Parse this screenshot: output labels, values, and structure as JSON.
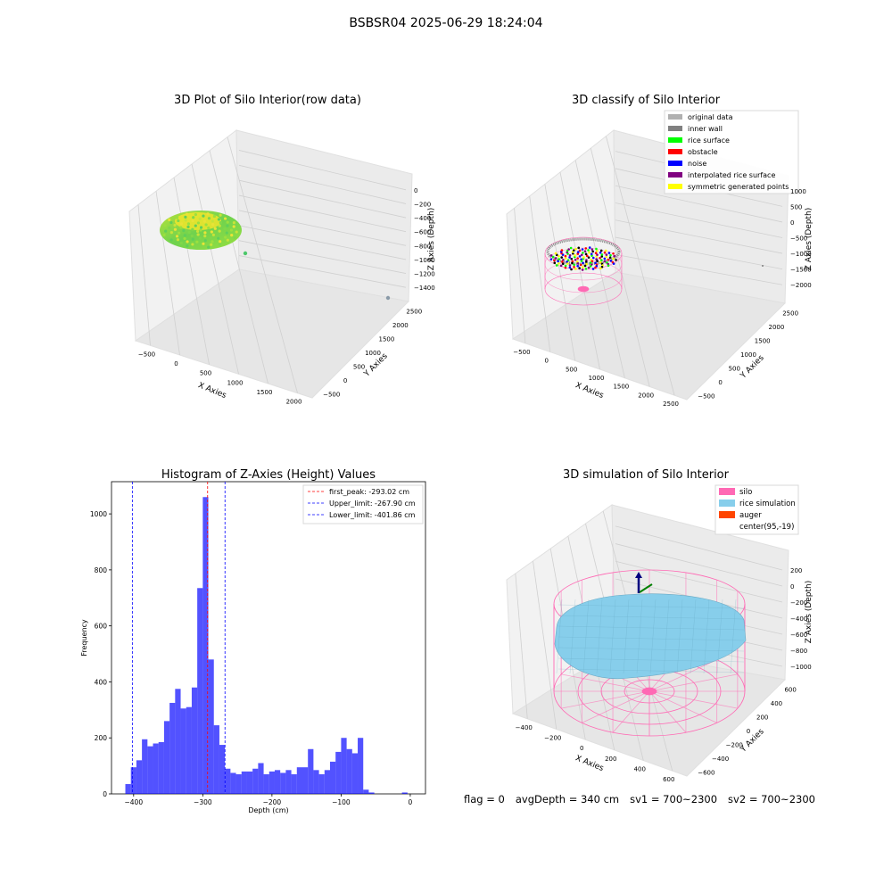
{
  "suptitle": "BSBSR04 2025-06-29 18:24:04",
  "footer": {
    "flag": "flag = 0",
    "avg_depth": "avgDepth = 340 cm",
    "sv1": "sv1 = 700~2300",
    "sv2": "sv2 = 700~2300"
  },
  "colors": {
    "histogram_bar": "#0000ff",
    "first_peak": "#ff0000",
    "limits": "#0000ff",
    "silo": "#ff69b4",
    "rice_simulation": "#87ceeb",
    "auger": "#ff4500",
    "original_data": "#b0b0b0",
    "inner_wall": "#808080",
    "rice_surface": "#00ff00",
    "obstacle": "#ff0000",
    "noise": "#0000ff",
    "interpolated_rice_surface": "#800080",
    "symmetric_generated_points": "#ffff00"
  },
  "panel1": {
    "title": "3D Plot of Silo Interior(row data)",
    "x_label": "X Axies",
    "y_label": "Y Axies",
    "z_label": "Z Axies (Depth)",
    "x_ticks": [
      "−500",
      "0",
      "500",
      "1000",
      "1500",
      "2000"
    ],
    "y_ticks": [
      "−500",
      "0",
      "500",
      "1000",
      "1500",
      "2000",
      "2500"
    ],
    "z_ticks": [
      "0",
      "−200",
      "−400",
      "−600",
      "−800",
      "−1000",
      "−1200",
      "−1400"
    ]
  },
  "panel2": {
    "title": "3D classify of Silo Interior",
    "x_label": "X Axies",
    "y_label": "Y Axies",
    "z_label": "Z Axies (Depth)",
    "x_ticks": [
      "−500",
      "0",
      "500",
      "1000",
      "1500",
      "2000",
      "2500"
    ],
    "y_ticks": [
      "−500",
      "0",
      "500",
      "1000",
      "1500",
      "2000",
      "2500"
    ],
    "z_ticks": [
      "1000",
      "500",
      "0",
      "−500",
      "−1000",
      "−1500",
      "−2000"
    ],
    "legend": [
      {
        "label": "original data",
        "color": "#b0b0b0"
      },
      {
        "label": "inner wall",
        "color": "#808080"
      },
      {
        "label": "rice surface",
        "color": "#00ff00"
      },
      {
        "label": "obstacle",
        "color": "#ff0000"
      },
      {
        "label": "noise",
        "color": "#0000ff"
      },
      {
        "label": "interpolated rice surface",
        "color": "#800080"
      },
      {
        "label": "symmetric generated points",
        "color": "#ffff00"
      }
    ]
  },
  "panel4": {
    "title": "3D simulation of Silo Interior",
    "x_label": "X Axies",
    "y_label": "Y Axies",
    "z_label": "Z Axies (Depth)",
    "x_ticks": [
      "−400",
      "−200",
      "0",
      "200",
      "400",
      "600"
    ],
    "y_ticks": [
      "−600",
      "−400",
      "−200",
      "0",
      "200",
      "400",
      "600"
    ],
    "z_ticks": [
      "200",
      "0",
      "−200",
      "−400",
      "−600",
      "−800",
      "−1000"
    ],
    "legend": [
      {
        "label": "silo",
        "color": "#ff69b4"
      },
      {
        "label": "rice simulation",
        "color": "#87ceeb"
      },
      {
        "label": "auger",
        "color": "#ff4500"
      },
      {
        "label": "center(95,-19)",
        "color": ""
      }
    ]
  },
  "chart_data": [
    {
      "type": "bar",
      "title": "Histogram of Z-Axies (Height) Values",
      "xlabel": "Depth (cm)",
      "ylabel": "Frequency",
      "xlim": [
        -432,
        22
      ],
      "ylim": [
        0,
        1115
      ],
      "x_ticks": [
        -400,
        -300,
        -200,
        -100,
        0
      ],
      "y_ticks": [
        0,
        200,
        400,
        600,
        800,
        1000
      ],
      "bin_width": 8.0,
      "bin_starts": [
        -412,
        -404,
        -396,
        -388,
        -380,
        -372,
        -364,
        -356,
        -348,
        -340,
        -332,
        -324,
        -316,
        -308,
        -300,
        -292,
        -284,
        -276,
        -268,
        -260,
        -252,
        -244,
        -236,
        -228,
        -220,
        -212,
        -204,
        -196,
        -188,
        -180,
        -172,
        -164,
        -156,
        -148,
        -140,
        -132,
        -124,
        -116,
        -108,
        -100,
        -92,
        -84,
        -76,
        -68,
        -60,
        -52,
        -44,
        -36,
        -28,
        -20,
        -12,
        -4
      ],
      "values": [
        35,
        95,
        120,
        195,
        170,
        180,
        185,
        260,
        325,
        375,
        305,
        310,
        380,
        735,
        1060,
        480,
        245,
        175,
        90,
        75,
        70,
        80,
        80,
        90,
        110,
        70,
        80,
        85,
        75,
        85,
        70,
        95,
        95,
        160,
        85,
        70,
        85,
        115,
        150,
        200,
        160,
        145,
        200,
        15,
        5,
        0,
        0,
        0,
        0,
        0,
        5,
        0
      ],
      "vlines": [
        {
          "label": "first_peak: -293.02 cm",
          "x": -293.02,
          "color": "#ff0000"
        },
        {
          "label": "Upper_limit: -267.90 cm",
          "x": -267.9,
          "color": "#0000ff"
        },
        {
          "label": "Lower_limit: -401.86 cm",
          "x": -401.86,
          "color": "#0000ff"
        }
      ],
      "legend": "top-right"
    }
  ]
}
